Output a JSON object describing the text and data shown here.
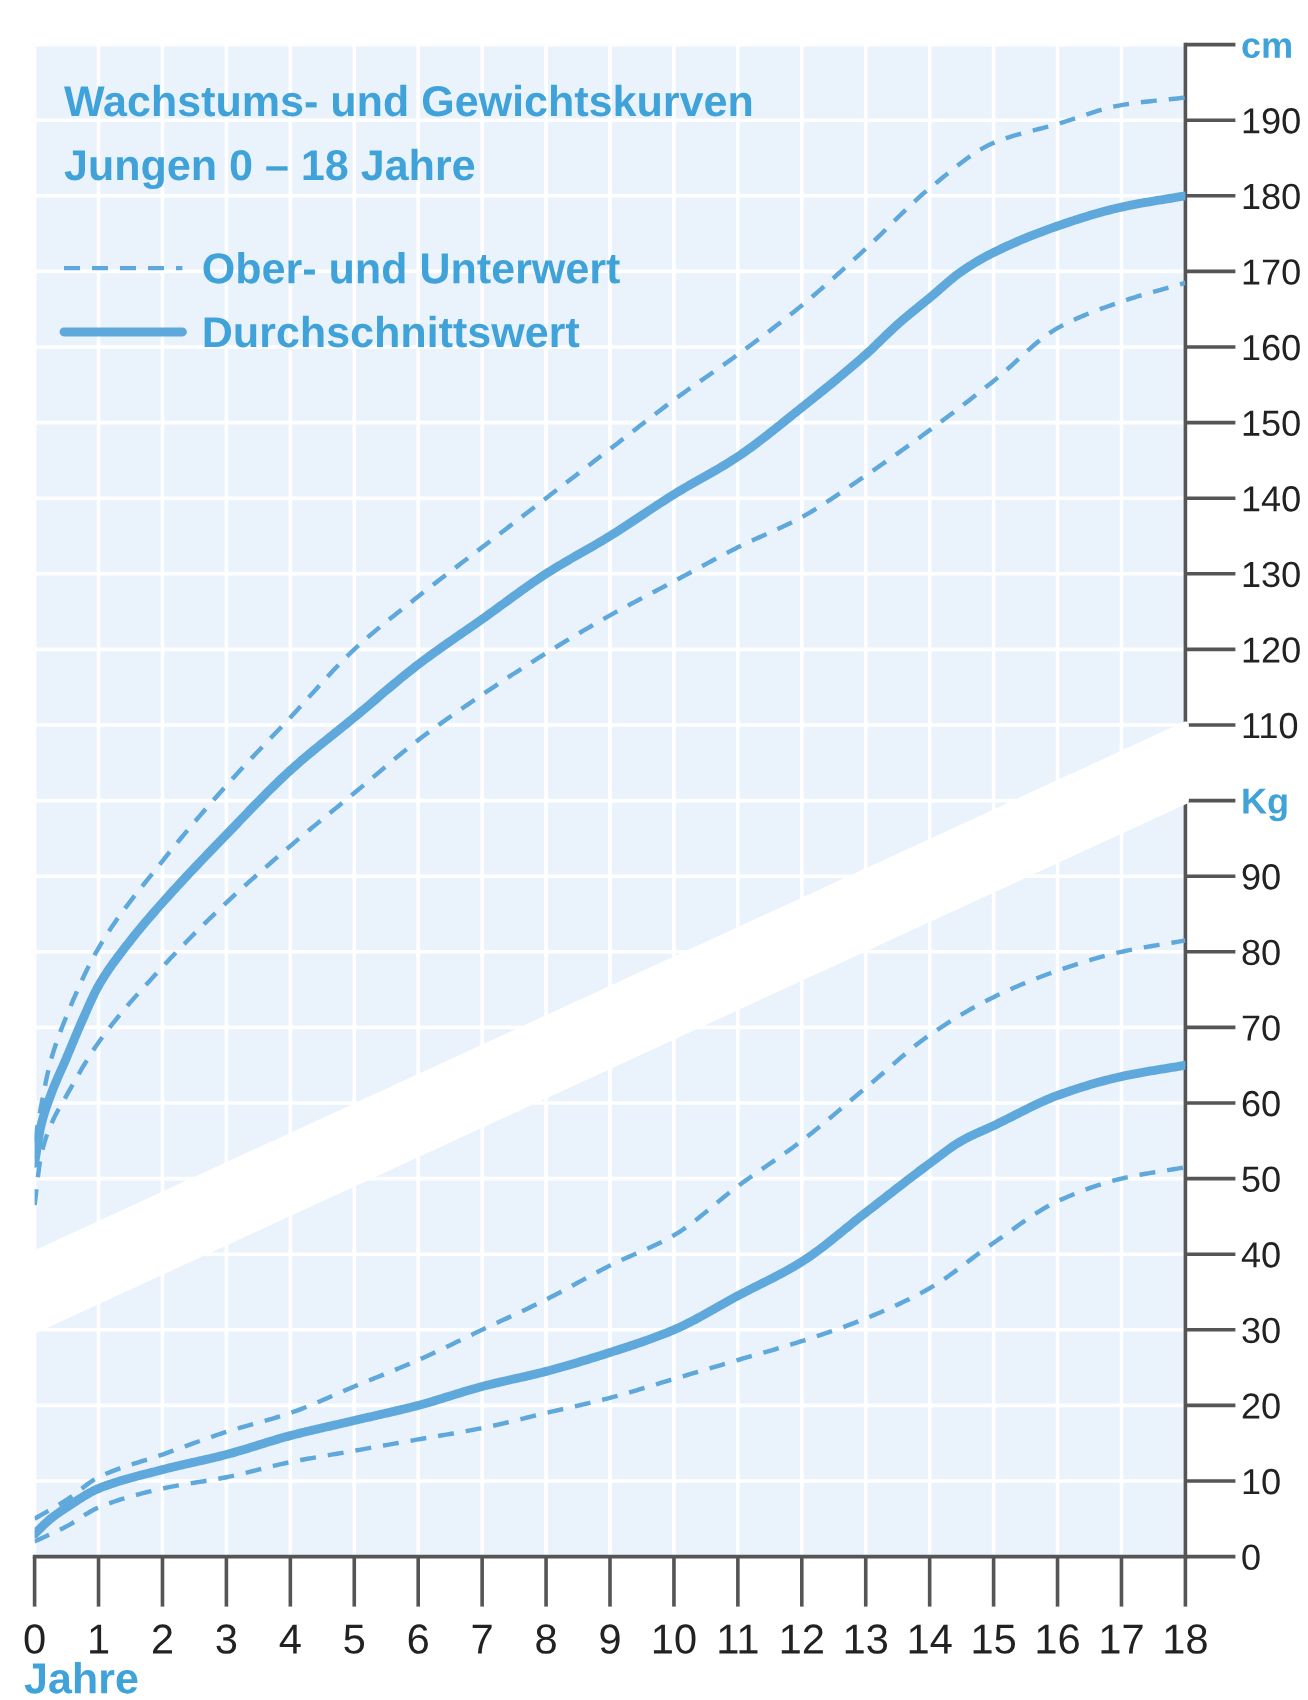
{
  "chart_data": {
    "type": "line",
    "title": "Wachstums- und Gewichtskurven",
    "subtitle": "Jungen 0 – 18 Jahre",
    "xlabel": "Jahre",
    "xlim": [
      0,
      18
    ],
    "xticks": [
      0,
      1,
      2,
      3,
      4,
      5,
      6,
      7,
      8,
      9,
      10,
      11,
      12,
      13,
      14,
      15,
      16,
      17,
      18
    ],
    "ylim": [
      0,
      200
    ],
    "yticks": [
      0,
      10,
      20,
      30,
      40,
      50,
      60,
      70,
      80,
      90,
      {
        "value": 100,
        "label": "Kg"
      },
      110,
      120,
      130,
      140,
      150,
      160,
      170,
      180,
      190,
      {
        "value": 200,
        "label": "cm"
      }
    ],
    "grid": true,
    "legend": "top left",
    "series": [
      {
        "color": "#ffffff",
        "x": [
          0,
          18
        ],
        "values": [
          null,
          null
        ],
        "lower": [
          30,
          100
        ],
        "upper": [
          40,
          110
        ]
      },
      {
        "name": "Ober- und Unterwert",
        "color": "#5fa8dc",
        "line_style": "dashed",
        "x": [
          0,
          0.25,
          0.5,
          1,
          2,
          3,
          4,
          5,
          6,
          7,
          8,
          9,
          10,
          11,
          12,
          13,
          14,
          15,
          16,
          17,
          18
        ],
        "values": [
          55,
          65.5,
          71.5,
          80.5,
          92,
          102,
          111,
          120,
          127,
          133.5,
          140,
          146.5,
          153,
          159,
          165.5,
          173,
          181,
          187,
          189.5,
          192,
          193
        ]
      },
      {
        "name": "Durchschnittswert",
        "color": "#5fa8dc",
        "line_style": "solid",
        "x": [
          0,
          0.1,
          0.25,
          0.5,
          0.75,
          1,
          1.5,
          2,
          3,
          4,
          5,
          6,
          7,
          8,
          9,
          10,
          11,
          12,
          13,
          13.5,
          14,
          14.5,
          15,
          16,
          17,
          18
        ],
        "values": [
          52,
          57,
          61,
          66,
          71,
          75.5,
          81.5,
          86.5,
          95.5,
          104,
          111,
          118,
          124,
          130,
          135,
          140.5,
          145.5,
          152,
          159,
          163,
          166.5,
          170,
          172.5,
          176,
          178.5,
          180
        ]
      },
      {
        "color": "#5fa8dc",
        "line_style": "dashed",
        "x": [
          0,
          0.1,
          0.25,
          0.5,
          1,
          2,
          3,
          4,
          5,
          6,
          7,
          8,
          9,
          10,
          11,
          12,
          13,
          14,
          15,
          16,
          17,
          18
        ],
        "values": [
          46.5,
          53,
          57,
          61,
          68,
          78,
          86.5,
          94,
          101,
          108,
          114,
          119.5,
          124.5,
          129,
          133.5,
          137.5,
          143,
          149,
          155.5,
          162.5,
          166,
          168.5
        ]
      },
      {
        "color": "#5fa8dc",
        "line_style": "dashed",
        "x": [
          0,
          0.5,
          1,
          2,
          3,
          4,
          5,
          6,
          7,
          8,
          9,
          10,
          11,
          12,
          13,
          14,
          15,
          16,
          17,
          18
        ],
        "values": [
          5,
          7.5,
          10.5,
          13.5,
          16.5,
          19,
          22.5,
          26,
          30,
          34,
          38.5,
          42.5,
          49,
          55,
          62,
          69,
          74,
          77.5,
          80,
          81.5
        ]
      },
      {
        "color": "#5fa8dc",
        "line_style": "solid",
        "x": [
          0,
          0.25,
          0.5,
          1,
          2,
          3,
          4,
          5,
          6,
          7,
          8,
          9,
          10,
          11,
          12,
          13,
          14,
          14.5,
          15,
          16,
          17,
          18
        ],
        "values": [
          3,
          5,
          6.5,
          9,
          11.5,
          13.5,
          16,
          18,
          20,
          22.5,
          24.5,
          27,
          30,
          34.5,
          39,
          45.5,
          52,
          55,
          57,
          61,
          63.5,
          65
        ]
      },
      {
        "color": "#5fa8dc",
        "line_style": "dashed",
        "x": [
          0,
          0.5,
          1,
          2,
          3,
          4,
          5,
          6,
          7,
          8,
          9,
          10,
          11,
          12,
          13,
          14,
          15,
          16,
          17,
          18
        ],
        "values": [
          2,
          4,
          6.5,
          9,
          10.5,
          12.5,
          14,
          15.5,
          17,
          19,
          21,
          23.5,
          26,
          28.5,
          31.5,
          35.5,
          41.5,
          47,
          50,
          51.5
        ]
      }
    ]
  }
}
